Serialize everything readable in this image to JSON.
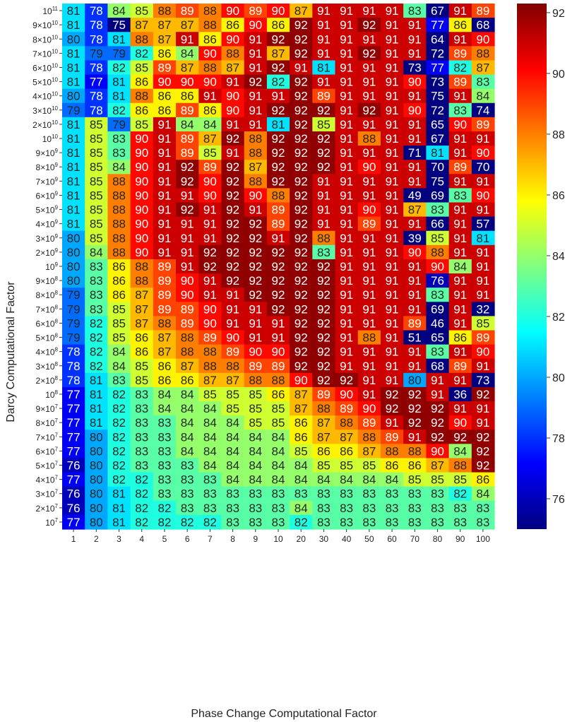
{
  "chart_data": {
    "type": "heatmap",
    "xlabel": "Phase Change Computational Factor",
    "ylabel": "Darcy Computational Factor",
    "x_categories": [
      "1",
      "2",
      "3",
      "4",
      "5",
      "6",
      "7",
      "8",
      "9",
      "10",
      "20",
      "30",
      "40",
      "50",
      "60",
      "70",
      "80",
      "90",
      "100"
    ],
    "y_categories": [
      {
        "base": "10",
        "exp": "11"
      },
      {
        "base": "9×10",
        "exp": "10"
      },
      {
        "base": "8×10",
        "exp": "10"
      },
      {
        "base": "7×10",
        "exp": "10"
      },
      {
        "base": "6×10",
        "exp": "10"
      },
      {
        "base": "5×10",
        "exp": "10"
      },
      {
        "base": "4×10",
        "exp": "10"
      },
      {
        "base": "3×10",
        "exp": "10"
      },
      {
        "base": "2×10",
        "exp": "10"
      },
      {
        "base": "10",
        "exp": "10"
      },
      {
        "base": "9×10",
        "exp": "9"
      },
      {
        "base": "8×10",
        "exp": "9"
      },
      {
        "base": "7×10",
        "exp": "9"
      },
      {
        "base": "6×10",
        "exp": "9"
      },
      {
        "base": "5×10",
        "exp": "9"
      },
      {
        "base": "4×10",
        "exp": "9"
      },
      {
        "base": "3×10",
        "exp": "9"
      },
      {
        "base": "2×10",
        "exp": "9"
      },
      {
        "base": "10",
        "exp": "9"
      },
      {
        "base": "9×10",
        "exp": "8"
      },
      {
        "base": "8×10",
        "exp": "8"
      },
      {
        "base": "7×10",
        "exp": "8"
      },
      {
        "base": "6×10",
        "exp": "8"
      },
      {
        "base": "5×10",
        "exp": "8"
      },
      {
        "base": "4×10",
        "exp": "8"
      },
      {
        "base": "3×10",
        "exp": "8"
      },
      {
        "base": "2×10",
        "exp": "8"
      },
      {
        "base": "10",
        "exp": "8"
      },
      {
        "base": "9×10",
        "exp": "7"
      },
      {
        "base": "8×10",
        "exp": "7"
      },
      {
        "base": "7×10",
        "exp": "7"
      },
      {
        "base": "6×10",
        "exp": "7"
      },
      {
        "base": "5×10",
        "exp": "7"
      },
      {
        "base": "4×10",
        "exp": "7"
      },
      {
        "base": "3×10",
        "exp": "7"
      },
      {
        "base": "2×10",
        "exp": "7"
      },
      {
        "base": "10",
        "exp": "7"
      }
    ],
    "values": [
      [
        81,
        78,
        84,
        85,
        88,
        89,
        88,
        90,
        89,
        90,
        87,
        91,
        91,
        91,
        91,
        83,
        67,
        91,
        89
      ],
      [
        81,
        78,
        75,
        87,
        87,
        87,
        88,
        86,
        90,
        86,
        92,
        91,
        91,
        92,
        91,
        91,
        77,
        86,
        68
      ],
      [
        80,
        78,
        81,
        88,
        87,
        91,
        86,
        90,
        91,
        92,
        92,
        91,
        91,
        91,
        91,
        91,
        64,
        91,
        90
      ],
      [
        81,
        79,
        79,
        82,
        86,
        84,
        90,
        88,
        91,
        87,
        92,
        91,
        91,
        92,
        91,
        91,
        72,
        89,
        88
      ],
      [
        81,
        78,
        82,
        85,
        89,
        87,
        88,
        87,
        91,
        92,
        91,
        81,
        91,
        91,
        91,
        73,
        77,
        82,
        87
      ],
      [
        81,
        77,
        81,
        86,
        90,
        90,
        90,
        91,
        92,
        82,
        92,
        91,
        91,
        91,
        91,
        90,
        73,
        89,
        83
      ],
      [
        80,
        78,
        81,
        88,
        86,
        86,
        91,
        90,
        91,
        91,
        92,
        89,
        91,
        91,
        91,
        91,
        75,
        91,
        84
      ],
      [
        79,
        78,
        82,
        86,
        86,
        89,
        86,
        90,
        91,
        92,
        92,
        92,
        91,
        92,
        91,
        90,
        72,
        83,
        74
      ],
      [
        81,
        85,
        79,
        85,
        91,
        84,
        84,
        91,
        91,
        81,
        92,
        85,
        91,
        91,
        91,
        91,
        65,
        90,
        89
      ],
      [
        81,
        85,
        83,
        90,
        91,
        89,
        87,
        92,
        88,
        92,
        92,
        92,
        91,
        88,
        91,
        91,
        67,
        91,
        91
      ],
      [
        81,
        85,
        83,
        90,
        91,
        89,
        85,
        91,
        88,
        92,
        92,
        92,
        91,
        91,
        91,
        71,
        81,
        91,
        90
      ],
      [
        81,
        85,
        84,
        90,
        91,
        92,
        89,
        92,
        87,
        92,
        92,
        92,
        91,
        90,
        91,
        91,
        70,
        89,
        70
      ],
      [
        81,
        85,
        88,
        90,
        91,
        92,
        90,
        92,
        88,
        92,
        92,
        91,
        91,
        91,
        91,
        91,
        75,
        91,
        91
      ],
      [
        81,
        85,
        88,
        90,
        91,
        91,
        90,
        92,
        90,
        88,
        92,
        91,
        91,
        91,
        91,
        49,
        69,
        83,
        90
      ],
      [
        81,
        85,
        88,
        90,
        91,
        92,
        91,
        92,
        91,
        89,
        92,
        91,
        91,
        90,
        91,
        87,
        83,
        91,
        91
      ],
      [
        81,
        85,
        88,
        90,
        91,
        91,
        91,
        92,
        92,
        89,
        92,
        91,
        91,
        89,
        91,
        91,
        66,
        91,
        57
      ],
      [
        80,
        85,
        88,
        90,
        91,
        91,
        91,
        92,
        92,
        91,
        92,
        88,
        91,
        91,
        91,
        39,
        85,
        91,
        81
      ],
      [
        80,
        84,
        88,
        90,
        91,
        91,
        92,
        92,
        92,
        92,
        92,
        83,
        91,
        91,
        91,
        90,
        88,
        91,
        91
      ],
      [
        80,
        83,
        86,
        88,
        89,
        91,
        92,
        92,
        92,
        92,
        92,
        92,
        91,
        91,
        91,
        91,
        90,
        84,
        91
      ],
      [
        80,
        83,
        86,
        88,
        89,
        90,
        91,
        92,
        92,
        92,
        92,
        92,
        91,
        91,
        91,
        91,
        76,
        91,
        91
      ],
      [
        79,
        83,
        86,
        87,
        89,
        90,
        91,
        91,
        92,
        92,
        92,
        92,
        91,
        91,
        91,
        91,
        83,
        91,
        91
      ],
      [
        79,
        83,
        85,
        87,
        89,
        89,
        90,
        91,
        91,
        92,
        92,
        92,
        91,
        91,
        91,
        91,
        69,
        91,
        32
      ],
      [
        79,
        82,
        85,
        87,
        88,
        89,
        90,
        91,
        91,
        91,
        92,
        92,
        91,
        91,
        91,
        89,
        46,
        91,
        85
      ],
      [
        79,
        82,
        85,
        86,
        87,
        88,
        89,
        90,
        91,
        91,
        92,
        92,
        91,
        88,
        91,
        51,
        65,
        86,
        89
      ],
      [
        78,
        82,
        84,
        86,
        87,
        88,
        88,
        89,
        90,
        90,
        92,
        92,
        91,
        91,
        91,
        91,
        83,
        91,
        90
      ],
      [
        78,
        82,
        84,
        85,
        86,
        87,
        88,
        88,
        89,
        89,
        92,
        92,
        91,
        91,
        91,
        91,
        68,
        89,
        91
      ],
      [
        78,
        81,
        83,
        85,
        86,
        86,
        87,
        87,
        88,
        88,
        90,
        92,
        92,
        91,
        91,
        80,
        91,
        91,
        73
      ],
      [
        77,
        81,
        82,
        83,
        84,
        84,
        85,
        85,
        85,
        86,
        87,
        89,
        90,
        91,
        92,
        92,
        91,
        36,
        92
      ],
      [
        77,
        81,
        82,
        83,
        84,
        84,
        84,
        85,
        85,
        85,
        87,
        88,
        89,
        90,
        92,
        92,
        92,
        91,
        91
      ],
      [
        77,
        81,
        82,
        83,
        83,
        84,
        84,
        84,
        85,
        85,
        86,
        87,
        88,
        89,
        91,
        92,
        92,
        90,
        91
      ],
      [
        77,
        80,
        82,
        83,
        83,
        84,
        84,
        84,
        84,
        84,
        86,
        87,
        87,
        88,
        89,
        91,
        92,
        92,
        92
      ],
      [
        77,
        80,
        82,
        83,
        83,
        84,
        84,
        84,
        84,
        84,
        85,
        86,
        86,
        87,
        88,
        88,
        90,
        84,
        92
      ],
      [
        76,
        80,
        82,
        83,
        83,
        83,
        84,
        84,
        84,
        84,
        84,
        85,
        85,
        85,
        86,
        86,
        87,
        88,
        92
      ],
      [
        77,
        80,
        82,
        82,
        83,
        83,
        83,
        84,
        84,
        84,
        84,
        84,
        84,
        84,
        84,
        85,
        85,
        85,
        86
      ],
      [
        76,
        80,
        81,
        82,
        83,
        83,
        83,
        83,
        83,
        83,
        83,
        83,
        83,
        83,
        83,
        83,
        83,
        82,
        84
      ],
      [
        76,
        80,
        81,
        82,
        82,
        83,
        83,
        83,
        83,
        83,
        84,
        83,
        83,
        83,
        83,
        83,
        83,
        83,
        83
      ],
      [
        77,
        80,
        81,
        82,
        82,
        82,
        82,
        83,
        83,
        83,
        82,
        83,
        83,
        83,
        83,
        83,
        83,
        83,
        83
      ]
    ],
    "colorbar": {
      "colormap": "jet",
      "vmin": 75,
      "vmax": 92.3,
      "ticks": [
        "76",
        "78",
        "80",
        "82",
        "84",
        "86",
        "88",
        "90",
        "92"
      ]
    }
  }
}
